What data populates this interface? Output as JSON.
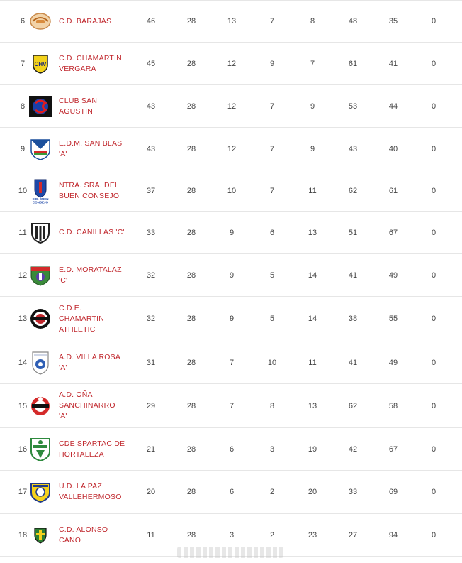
{
  "standings": {
    "rows": [
      {
        "pos": "6",
        "team": "C.D. BARAJAS",
        "crest": "barajas-crest-icon",
        "pts": "46",
        "pj": "28",
        "pg": "13",
        "pe": "7",
        "pp": "8",
        "gf": "48",
        "gc": "35",
        "san": "0"
      },
      {
        "pos": "7",
        "team": "C.D. CHAMARTIN VERGARA",
        "crest": "chamartin-vergara-crest-icon",
        "pts": "45",
        "pj": "28",
        "pg": "12",
        "pe": "9",
        "pp": "7",
        "gf": "61",
        "gc": "41",
        "san": "0"
      },
      {
        "pos": "8",
        "team": "CLUB SAN AGUSTIN",
        "crest": "san-agustin-crest-icon",
        "pts": "43",
        "pj": "28",
        "pg": "12",
        "pe": "7",
        "pp": "9",
        "gf": "53",
        "gc": "44",
        "san": "0"
      },
      {
        "pos": "9",
        "team": "E.D.M. SAN BLAS 'A'",
        "crest": "san-blas-crest-icon",
        "pts": "43",
        "pj": "28",
        "pg": "12",
        "pe": "7",
        "pp": "9",
        "gf": "43",
        "gc": "40",
        "san": "0"
      },
      {
        "pos": "10",
        "team": "NTRA. SRA. DEL BUEN CONSEJO",
        "crest": "buen-consejo-crest-icon",
        "pts": "37",
        "pj": "28",
        "pg": "10",
        "pe": "7",
        "pp": "11",
        "gf": "62",
        "gc": "61",
        "san": "0"
      },
      {
        "pos": "11",
        "team": "C.D. CANILLAS 'C'",
        "crest": "canillas-crest-icon",
        "pts": "33",
        "pj": "28",
        "pg": "9",
        "pe": "6",
        "pp": "13",
        "gf": "51",
        "gc": "67",
        "san": "0"
      },
      {
        "pos": "12",
        "team": "E.D. MORATALAZ 'C'",
        "crest": "moratalaz-crest-icon",
        "pts": "32",
        "pj": "28",
        "pg": "9",
        "pe": "5",
        "pp": "14",
        "gf": "41",
        "gc": "49",
        "san": "0"
      },
      {
        "pos": "13",
        "team": "C.D.E. CHAMARTIN ATHLETIC",
        "crest": "chamartin-athletic-crest-icon",
        "pts": "32",
        "pj": "28",
        "pg": "9",
        "pe": "5",
        "pp": "14",
        "gf": "38",
        "gc": "55",
        "san": "0"
      },
      {
        "pos": "14",
        "team": "A.D. VILLA ROSA 'A'",
        "crest": "villa-rosa-crest-icon",
        "pts": "31",
        "pj": "28",
        "pg": "7",
        "pe": "10",
        "pp": "11",
        "gf": "41",
        "gc": "49",
        "san": "0"
      },
      {
        "pos": "15",
        "team": "A.D. OÑA SANCHINARRO 'A'",
        "crest": "ona-sanchinarro-crest-icon",
        "pts": "29",
        "pj": "28",
        "pg": "7",
        "pe": "8",
        "pp": "13",
        "gf": "62",
        "gc": "58",
        "san": "0"
      },
      {
        "pos": "16",
        "team": "CDE SPARTAC DE HORTALEZA",
        "crest": "spartac-crest-icon",
        "pts": "21",
        "pj": "28",
        "pg": "6",
        "pe": "3",
        "pp": "19",
        "gf": "42",
        "gc": "67",
        "san": "0"
      },
      {
        "pos": "17",
        "team": "U.D. LA PAZ VALLEHERMOSO",
        "crest": "la-paz-crest-icon",
        "pts": "20",
        "pj": "28",
        "pg": "6",
        "pe": "2",
        "pp": "20",
        "gf": "33",
        "gc": "69",
        "san": "0"
      },
      {
        "pos": "18",
        "team": "C.D. ALONSO CANO",
        "crest": "alonso-cano-crest-icon",
        "pts": "11",
        "pj": "28",
        "pg": "3",
        "pe": "2",
        "pp": "23",
        "gf": "27",
        "gc": "94",
        "san": "0"
      }
    ]
  }
}
